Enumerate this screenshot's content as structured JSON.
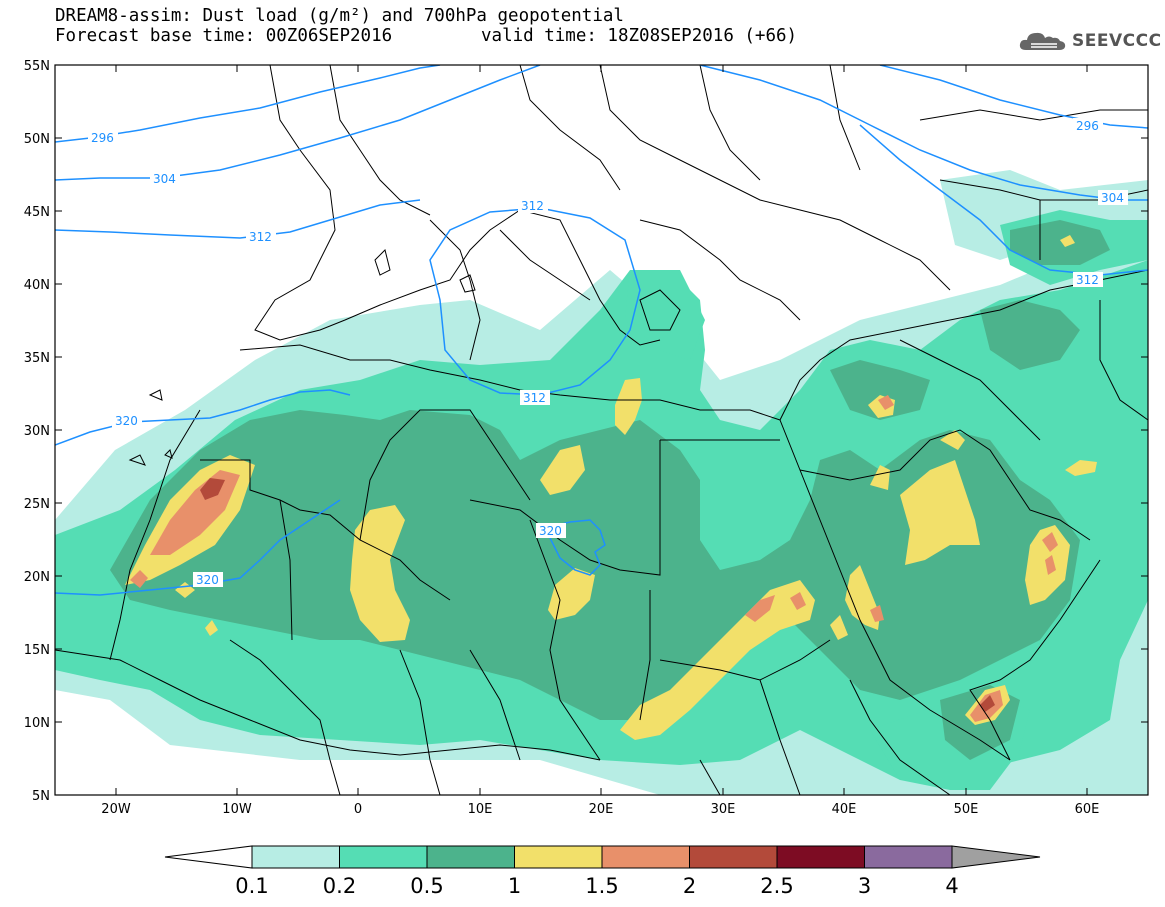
{
  "header": {
    "title_line1": "DREAM8-assim: Dust load (g/m²) and 700hPa geopotential",
    "title_line2": "Forecast base time: 00Z06SEP2016",
    "valid_time": "valid time: 18Z08SEP2016 (+66)",
    "logo_text": "SEEVCCC"
  },
  "map": {
    "lon_range": [
      -25,
      65
    ],
    "lat_range": [
      5,
      55
    ],
    "lat_labels": [
      "55N",
      "50N",
      "45N",
      "40N",
      "35N",
      "30N",
      "25N",
      "20N",
      "15N",
      "10N",
      "5N"
    ],
    "lon_labels": [
      "20W",
      "10W",
      "0",
      "10E",
      "20E",
      "30E",
      "40E",
      "50E",
      "60E"
    ],
    "contour_labels": [
      "296",
      "304",
      "312",
      "312",
      "312",
      "320",
      "320",
      "320",
      "296",
      "304",
      "312"
    ],
    "contour_color": "#1E90FF"
  },
  "colorbar": {
    "labels": [
      "0.1",
      "0.2",
      "0.5",
      "1",
      "1.5",
      "2",
      "2.5",
      "3",
      "4"
    ],
    "colors": [
      "#B7EDE4",
      "#55DDB4",
      "#4CB38C",
      "#F2E06A",
      "#E8906A",
      "#B34A3A",
      "#7D0C23",
      "#8A6A9E"
    ],
    "over_color": "#A0A0A0"
  }
}
